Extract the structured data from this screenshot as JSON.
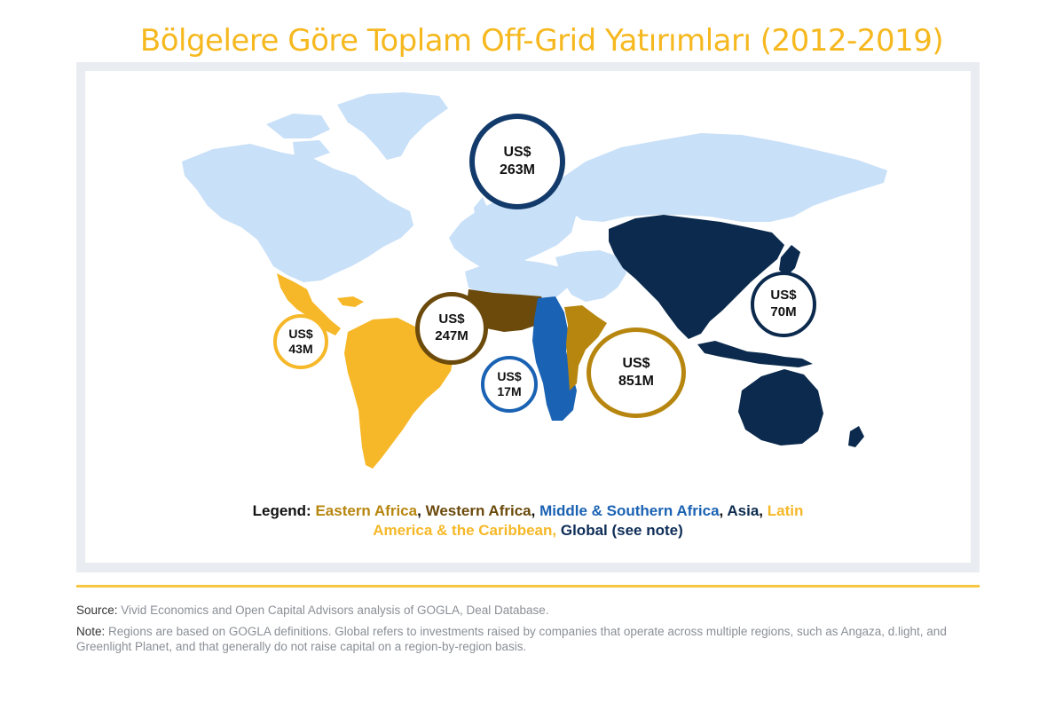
{
  "title": "Bölgelere Göre Toplam Off-Grid Yatırımları (2012-2019)",
  "colors": {
    "title": "#f6b81f",
    "eastern_africa": "#b7860f",
    "western_africa": "#6b4a0c",
    "middle_southern_africa": "#1a62b3",
    "asia": "#0b2a4d",
    "latin_america": "#f6b828",
    "global": "#0e2d57",
    "other_land": "#c8e0f8"
  },
  "bubbles": [
    {
      "region": "Global",
      "line1": "US$",
      "line2": "263M",
      "amount_musd": 263,
      "color": "#123a6b"
    },
    {
      "region": "Asia",
      "line1": "US$",
      "line2": "70M",
      "amount_musd": 70,
      "color": "#0b2a4d"
    },
    {
      "region": "Western Africa",
      "line1": "US$",
      "line2": "247M",
      "amount_musd": 247,
      "color": "#6b4a0c"
    },
    {
      "region": "Latin America & the Caribbean",
      "line1": "US$",
      "line2": "43M",
      "amount_musd": 43,
      "color": "#f6b828"
    },
    {
      "region": "Middle & Southern Africa",
      "line1": "US$",
      "line2": "17M",
      "amount_musd": 17,
      "color": "#1a62b3"
    },
    {
      "region": "Eastern Africa",
      "line1": "US$",
      "line2": "851M",
      "amount_musd": 851,
      "color": "#b7860f"
    }
  ],
  "legend": {
    "prefix": "Legend:",
    "eastern": "Eastern Africa",
    "sep1": ",",
    "western": "Western Africa",
    "sep2": ",",
    "middle": "Middle & Southern Africa",
    "sep3": ",",
    "asia": "Asia",
    "sep4": ",",
    "latin1": "Latin",
    "latin2": "America & the Caribbean,",
    "global": "Global (see note)"
  },
  "source": {
    "label": "Source:",
    "text": "Vivid Economics and Open Capital Advisors analysis of GOGLA, Deal Database."
  },
  "note": {
    "label": "Note:",
    "text": "Regions are based on GOGLA definitions. Global refers to investments raised by companies that operate across multiple regions, such as Angaza, d.light, and Greenlight Planet, and that generally do not raise capital on a region-by-region basis."
  }
}
